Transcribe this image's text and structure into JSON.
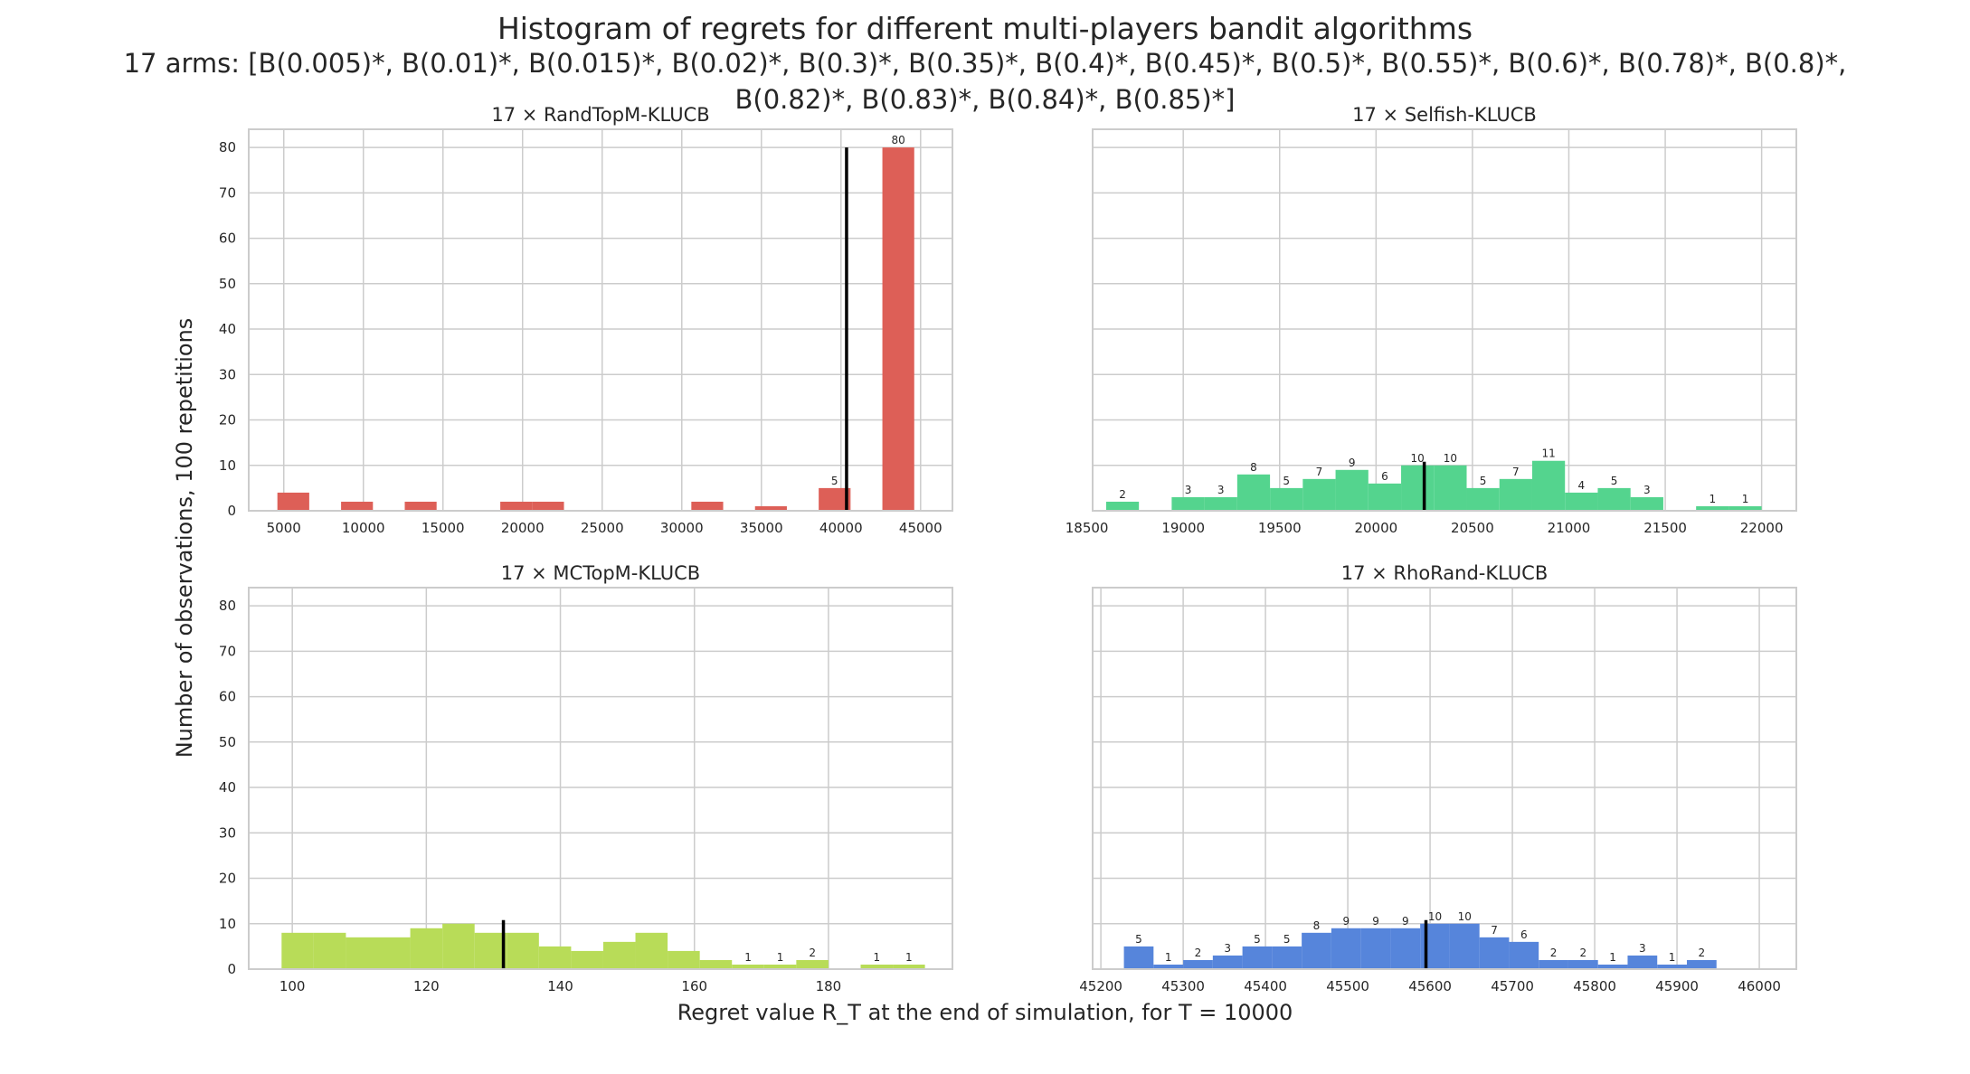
{
  "figure": {
    "title": "Histogram of regrets for different multi-players bandit algorithms",
    "subtitle_line1": "17 arms: [B(0.005)*, B(0.01)*, B(0.015)*, B(0.02)*, B(0.3)*, B(0.35)*, B(0.4)*, B(0.45)*, B(0.5)*, B(0.55)*, B(0.6)*, B(0.78)*, B(0.8)*,",
    "subtitle_line2": "B(0.82)*, B(0.83)*, B(0.84)*, B(0.85)*]",
    "xlabel": "Regret value R_T at the end of simulation, for T = 10000",
    "ylabel": "Number of observations, 100 repetitions"
  },
  "chart_data": [
    {
      "type": "bar",
      "title": "17 × RandTopM-KLUCB",
      "color": "#dd5f57",
      "xlim": [
        2800,
        47000
      ],
      "ylim": [
        0,
        84
      ],
      "xticks": [
        5000,
        10000,
        15000,
        20000,
        25000,
        30000,
        35000,
        40000,
        45000
      ],
      "yticks": [
        0,
        10,
        20,
        30,
        40,
        50,
        60,
        70,
        80
      ],
      "mean": 40350,
      "bins": [
        {
          "x0": 4600,
          "x1": 6600,
          "count": 4,
          "label": ""
        },
        {
          "x0": 8600,
          "x1": 10600,
          "count": 2,
          "label": ""
        },
        {
          "x0": 12600,
          "x1": 14600,
          "count": 2,
          "label": ""
        },
        {
          "x0": 18600,
          "x1": 20600,
          "count": 2,
          "label": ""
        },
        {
          "x0": 20600,
          "x1": 22600,
          "count": 2,
          "label": ""
        },
        {
          "x0": 30600,
          "x1": 32600,
          "count": 2,
          "label": ""
        },
        {
          "x0": 34600,
          "x1": 36600,
          "count": 1,
          "label": ""
        },
        {
          "x0": 38600,
          "x1": 40600,
          "count": 5,
          "label": "5"
        },
        {
          "x0": 42600,
          "x1": 44600,
          "count": 80,
          "label": "80"
        }
      ]
    },
    {
      "type": "bar",
      "title": "17 × Selfish-KLUCB",
      "color": "#54d48e",
      "xlim": [
        18530,
        22180
      ],
      "ylim": [
        0,
        84
      ],
      "xticks": [
        18500,
        19000,
        19500,
        20000,
        20500,
        21000,
        21500,
        22000
      ],
      "yticks": [
        0,
        10,
        20,
        30,
        40,
        50,
        60,
        70,
        80
      ],
      "mean": 20250,
      "bins": [
        {
          "x0": 18600,
          "x1": 18770,
          "count": 2,
          "label": "2"
        },
        {
          "x0": 18940,
          "x1": 19110,
          "count": 3,
          "label": "3"
        },
        {
          "x0": 19110,
          "x1": 19280,
          "count": 3,
          "label": "3"
        },
        {
          "x0": 19280,
          "x1": 19450,
          "count": 8,
          "label": "8"
        },
        {
          "x0": 19450,
          "x1": 19620,
          "count": 5,
          "label": "5"
        },
        {
          "x0": 19620,
          "x1": 19790,
          "count": 7,
          "label": "7"
        },
        {
          "x0": 19790,
          "x1": 19960,
          "count": 9,
          "label": "9"
        },
        {
          "x0": 19960,
          "x1": 20130,
          "count": 6,
          "label": "6"
        },
        {
          "x0": 20130,
          "x1": 20300,
          "count": 10,
          "label": "10"
        },
        {
          "x0": 20300,
          "x1": 20470,
          "count": 10,
          "label": "10"
        },
        {
          "x0": 20470,
          "x1": 20640,
          "count": 5,
          "label": "5"
        },
        {
          "x0": 20640,
          "x1": 20810,
          "count": 7,
          "label": "7"
        },
        {
          "x0": 20810,
          "x1": 20980,
          "count": 11,
          "label": "11"
        },
        {
          "x0": 20980,
          "x1": 21150,
          "count": 4,
          "label": "4"
        },
        {
          "x0": 21150,
          "x1": 21320,
          "count": 5,
          "label": "5"
        },
        {
          "x0": 21320,
          "x1": 21490,
          "count": 3,
          "label": "3"
        },
        {
          "x0": 21660,
          "x1": 21830,
          "count": 1,
          "label": "1"
        },
        {
          "x0": 21830,
          "x1": 22000,
          "count": 1,
          "label": "1"
        }
      ]
    },
    {
      "type": "bar",
      "title": "17 × MCTopM-KLUCB",
      "color": "#b8dc58",
      "xlim": [
        93.5,
        198.5
      ],
      "ylim": [
        0,
        84
      ],
      "xticks": [
        100,
        120,
        140,
        160,
        180
      ],
      "yticks": [
        0,
        10,
        20,
        30,
        40,
        50,
        60,
        70,
        80
      ],
      "mean": 131.5,
      "bins": [
        {
          "x0": 98.4,
          "x1": 103.2,
          "count": 8,
          "label": ""
        },
        {
          "x0": 103.2,
          "x1": 108.0,
          "count": 8,
          "label": ""
        },
        {
          "x0": 108.0,
          "x1": 112.8,
          "count": 7,
          "label": ""
        },
        {
          "x0": 112.8,
          "x1": 117.6,
          "count": 7,
          "label": ""
        },
        {
          "x0": 117.6,
          "x1": 122.4,
          "count": 9,
          "label": ""
        },
        {
          "x0": 122.4,
          "x1": 127.2,
          "count": 10,
          "label": ""
        },
        {
          "x0": 127.2,
          "x1": 132.0,
          "count": 8,
          "label": ""
        },
        {
          "x0": 132.0,
          "x1": 136.8,
          "count": 8,
          "label": ""
        },
        {
          "x0": 136.8,
          "x1": 141.6,
          "count": 5,
          "label": ""
        },
        {
          "x0": 141.6,
          "x1": 146.4,
          "count": 4,
          "label": ""
        },
        {
          "x0": 146.4,
          "x1": 151.2,
          "count": 6,
          "label": ""
        },
        {
          "x0": 151.2,
          "x1": 156.0,
          "count": 8,
          "label": ""
        },
        {
          "x0": 156.0,
          "x1": 160.8,
          "count": 4,
          "label": ""
        },
        {
          "x0": 160.8,
          "x1": 165.6,
          "count": 2,
          "label": ""
        },
        {
          "x0": 165.6,
          "x1": 170.4,
          "count": 1,
          "label": "1"
        },
        {
          "x0": 170.4,
          "x1": 175.2,
          "count": 1,
          "label": "1"
        },
        {
          "x0": 175.2,
          "x1": 180.0,
          "count": 2,
          "label": "2"
        },
        {
          "x0": 184.8,
          "x1": 189.6,
          "count": 1,
          "label": "1"
        },
        {
          "x0": 189.6,
          "x1": 194.4,
          "count": 1,
          "label": "1"
        }
      ]
    },
    {
      "type": "bar",
      "title": "17 × RhoRand-KLUCB",
      "color": "#5685db",
      "xlim": [
        45190,
        46045
      ],
      "ylim": [
        0,
        84
      ],
      "xticks": [
        45200,
        45300,
        45400,
        45500,
        45600,
        45700,
        45800,
        45900,
        46000
      ],
      "yticks": [
        0,
        10,
        20,
        30,
        40,
        50,
        60,
        70,
        80
      ],
      "mean": 45595,
      "bins": [
        {
          "x0": 45228,
          "x1": 45264,
          "count": 5,
          "label": "5"
        },
        {
          "x0": 45264,
          "x1": 45300,
          "count": 1,
          "label": "1"
        },
        {
          "x0": 45300,
          "x1": 45336,
          "count": 2,
          "label": "2"
        },
        {
          "x0": 45336,
          "x1": 45372,
          "count": 3,
          "label": "3"
        },
        {
          "x0": 45372,
          "x1": 45408,
          "count": 5,
          "label": "5"
        },
        {
          "x0": 45408,
          "x1": 45444,
          "count": 5,
          "label": "5"
        },
        {
          "x0": 45444,
          "x1": 45480,
          "count": 8,
          "label": "8"
        },
        {
          "x0": 45480,
          "x1": 45516,
          "count": 9,
          "label": "9"
        },
        {
          "x0": 45516,
          "x1": 45552,
          "count": 9,
          "label": "9"
        },
        {
          "x0": 45552,
          "x1": 45588,
          "count": 9,
          "label": "9"
        },
        {
          "x0": 45588,
          "x1": 45624,
          "count": 10,
          "label": "10"
        },
        {
          "x0": 45624,
          "x1": 45660,
          "count": 10,
          "label": "10"
        },
        {
          "x0": 45660,
          "x1": 45696,
          "count": 7,
          "label": "7"
        },
        {
          "x0": 45696,
          "x1": 45732,
          "count": 6,
          "label": "6"
        },
        {
          "x0": 45732,
          "x1": 45768,
          "count": 2,
          "label": "2"
        },
        {
          "x0": 45768,
          "x1": 45804,
          "count": 2,
          "label": "2"
        },
        {
          "x0": 45804,
          "x1": 45840,
          "count": 1,
          "label": "1"
        },
        {
          "x0": 45840,
          "x1": 45876,
          "count": 3,
          "label": "3"
        },
        {
          "x0": 45876,
          "x1": 45912,
          "count": 1,
          "label": "1"
        },
        {
          "x0": 45912,
          "x1": 45948,
          "count": 2,
          "label": "2"
        }
      ]
    }
  ]
}
